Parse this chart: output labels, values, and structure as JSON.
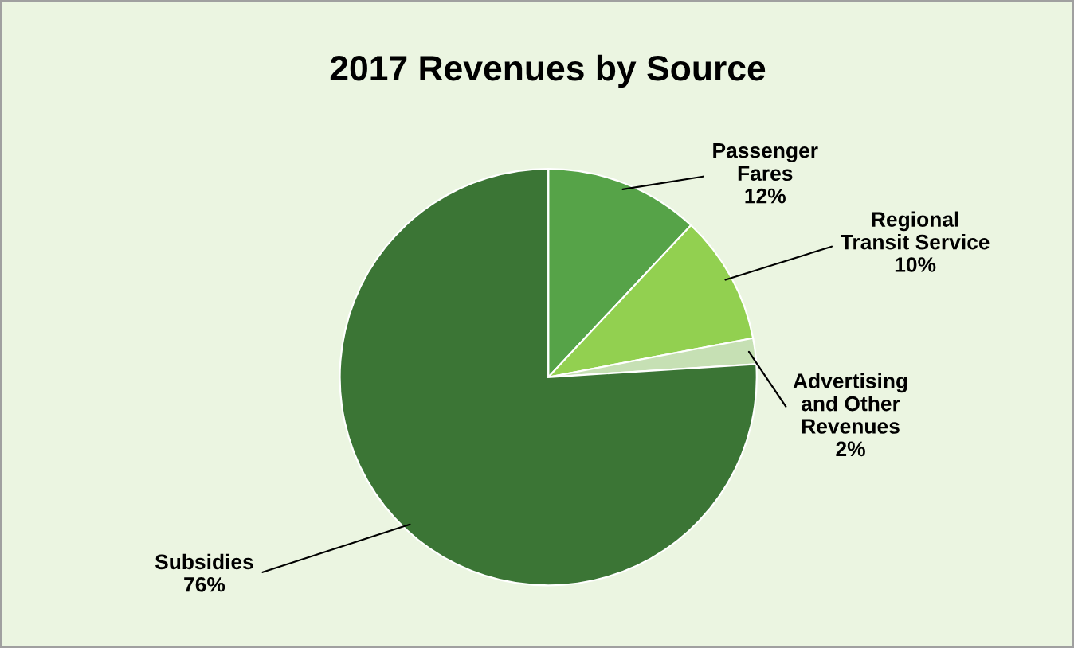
{
  "chart_data": {
    "type": "pie",
    "title": "2017 Revenues by Source",
    "categories": [
      "Passenger\nFares",
      "Regional\nTransit Service",
      "Advertising\nand Other\nRevenues",
      "Subsidies"
    ],
    "values": [
      12,
      10,
      2,
      76
    ],
    "colors": [
      "#56a348",
      "#92d050",
      "#c6e0b4",
      "#3b7535"
    ],
    "value_labels": [
      "12%",
      "10%",
      "2%",
      "76%"
    ],
    "legend": false
  }
}
